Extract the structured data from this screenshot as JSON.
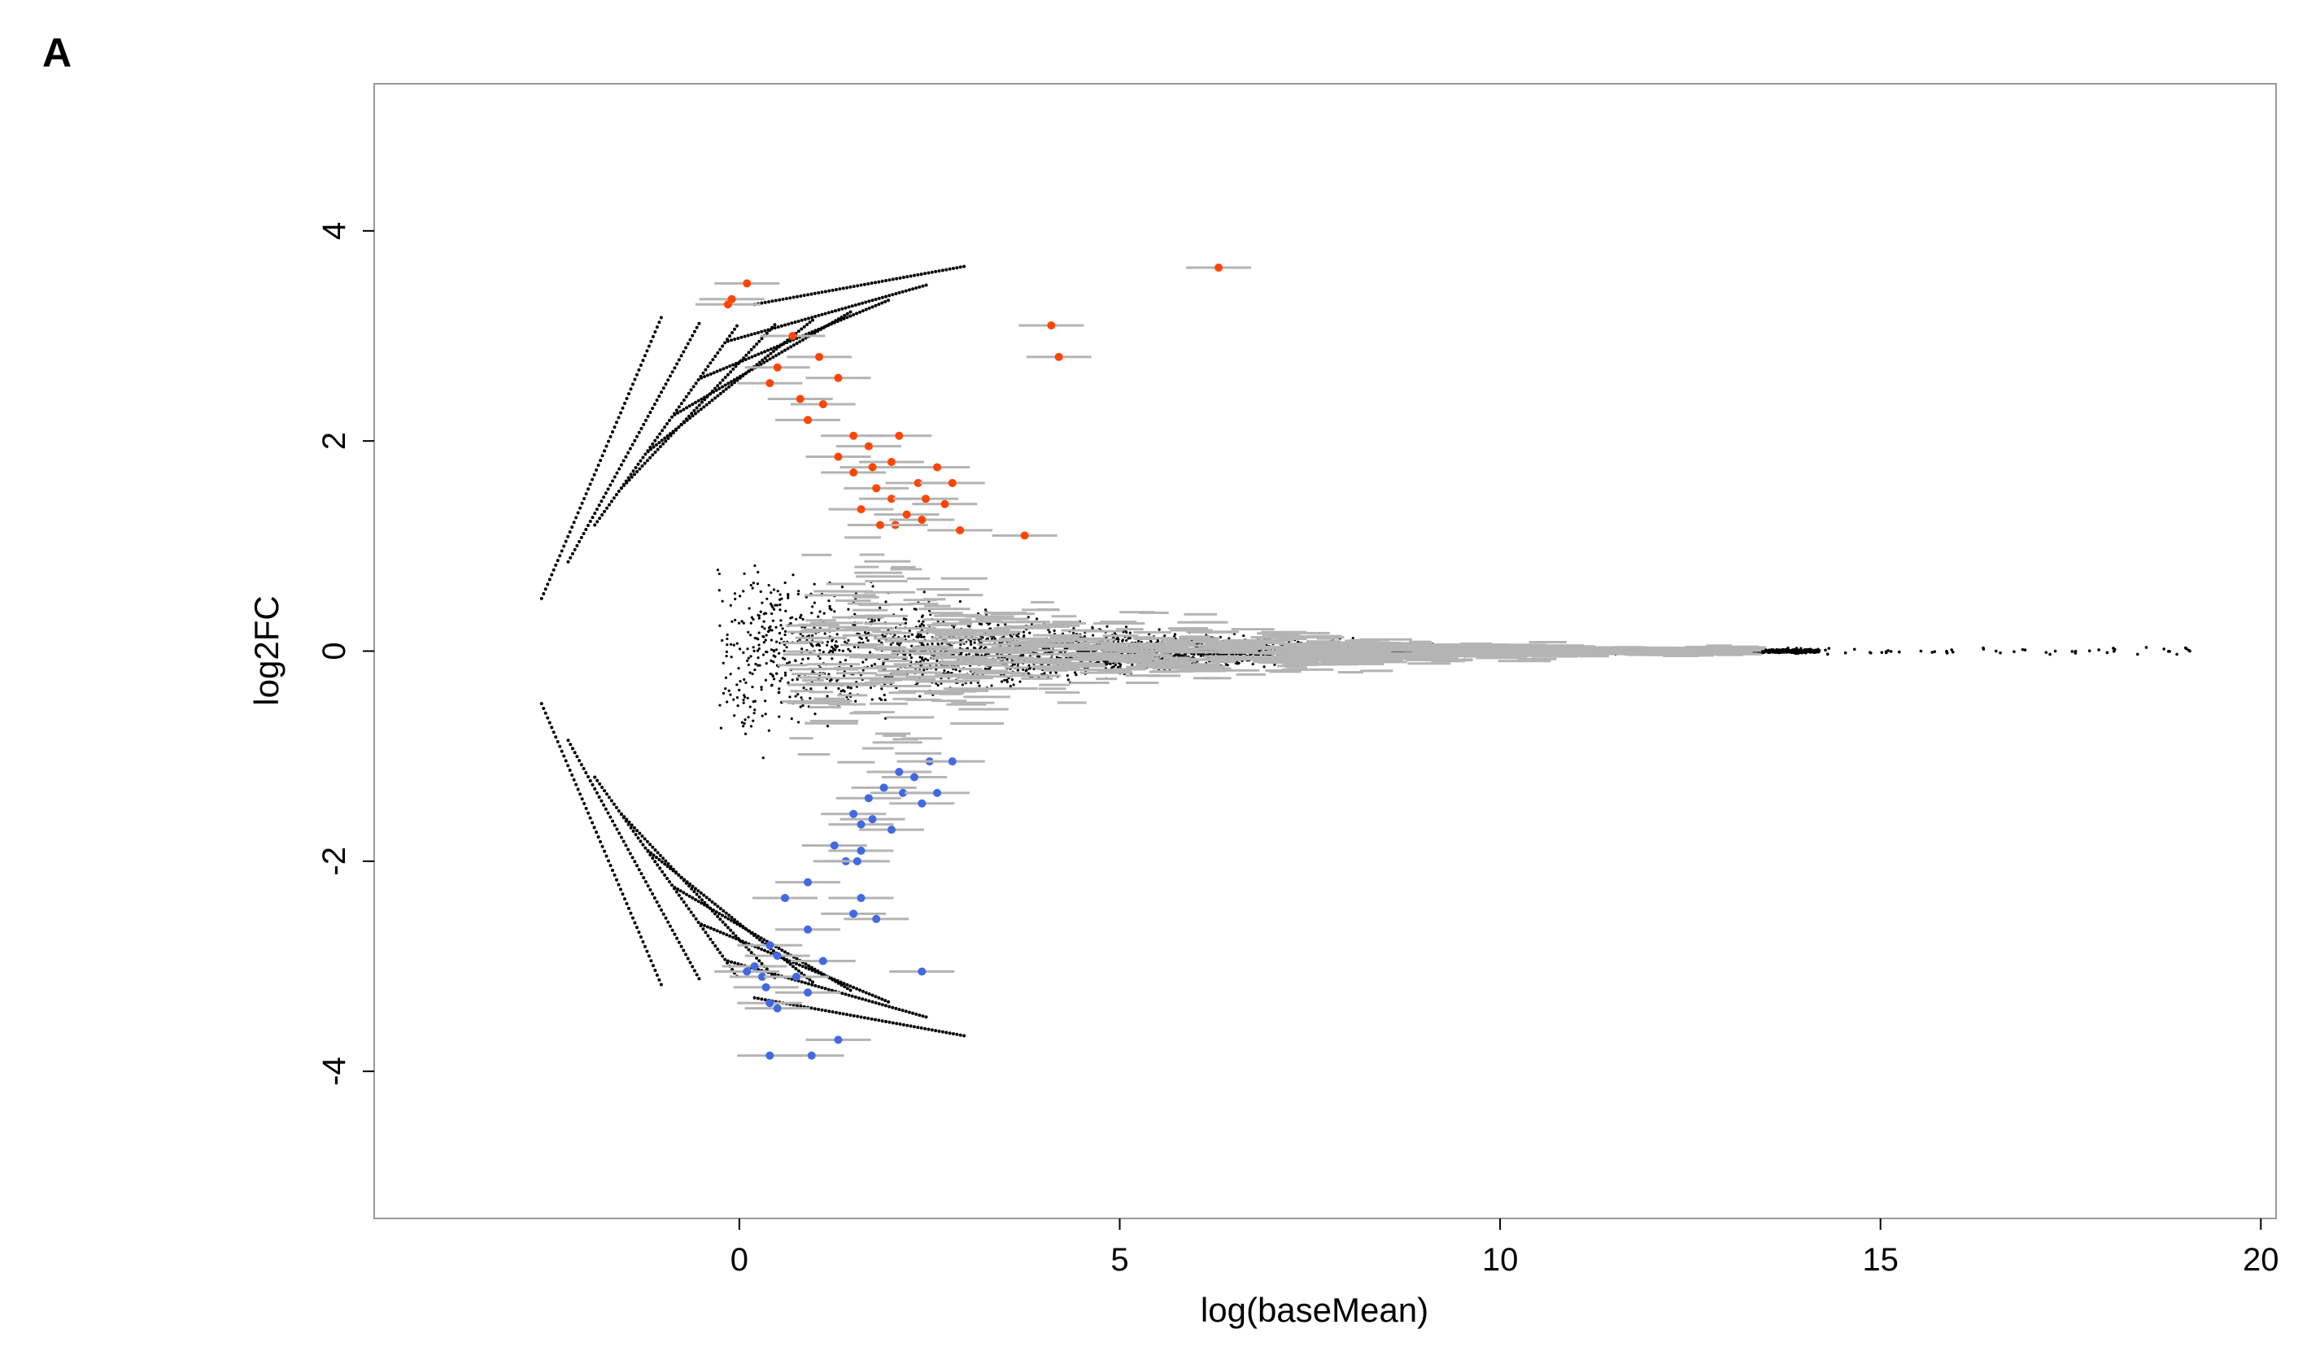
{
  "panel_label": "A",
  "chart_data": {
    "type": "scatter",
    "title": "",
    "xlabel": "log(baseMean)",
    "ylabel": "log2FC",
    "xlim": [
      -4.8,
      20.2
    ],
    "ylim": [
      -5.4,
      5.4
    ],
    "x_ticks": [
      0,
      5,
      10,
      15,
      20
    ],
    "y_ticks": [
      -4,
      -2,
      0,
      2,
      4
    ],
    "x_tick_labels": [
      "0",
      "5",
      "10",
      "15",
      "20"
    ],
    "y_tick_labels": [
      "-4",
      "-2",
      "0",
      "2",
      "4"
    ],
    "grid": false,
    "legend": "none",
    "colors": {
      "points": "#000000",
      "labels": "#b4b4b4",
      "up": "#ff4500",
      "down": "#4169e1",
      "frame": "#999999"
    },
    "series": [
      {
        "color": "#ff4500",
        "points": [
          [
            0.1,
            3.5
          ],
          [
            -0.1,
            3.35
          ],
          [
            -0.15,
            3.3
          ],
          [
            0.7,
            3.0
          ],
          [
            1.05,
            2.8
          ],
          [
            0.5,
            2.7
          ],
          [
            0.4,
            2.55
          ],
          [
            1.3,
            2.6
          ],
          [
            0.8,
            2.4
          ],
          [
            1.1,
            2.35
          ],
          [
            0.9,
            2.2
          ],
          [
            1.5,
            2.05
          ],
          [
            2.1,
            2.05
          ],
          [
            1.7,
            1.95
          ],
          [
            1.3,
            1.85
          ],
          [
            2.0,
            1.8
          ],
          [
            2.6,
            1.75
          ],
          [
            1.75,
            1.75
          ],
          [
            1.5,
            1.7
          ],
          [
            2.35,
            1.6
          ],
          [
            2.8,
            1.6
          ],
          [
            1.8,
            1.55
          ],
          [
            2.0,
            1.45
          ],
          [
            2.45,
            1.45
          ],
          [
            2.7,
            1.4
          ],
          [
            1.6,
            1.35
          ],
          [
            2.2,
            1.3
          ],
          [
            2.4,
            1.25
          ],
          [
            2.05,
            1.2
          ],
          [
            2.9,
            1.15
          ],
          [
            1.85,
            1.2
          ],
          [
            3.75,
            1.1
          ],
          [
            4.1,
            3.1
          ],
          [
            4.2,
            2.8
          ],
          [
            6.3,
            3.65
          ]
        ]
      },
      {
        "color": "#4169e1",
        "points": [
          [
            2.5,
            -1.05
          ],
          [
            2.8,
            -1.05
          ],
          [
            2.1,
            -1.15
          ],
          [
            2.3,
            -1.2
          ],
          [
            1.9,
            -1.3
          ],
          [
            2.15,
            -1.35
          ],
          [
            2.6,
            -1.35
          ],
          [
            1.7,
            -1.4
          ],
          [
            2.4,
            -1.45
          ],
          [
            1.5,
            -1.55
          ],
          [
            1.75,
            -1.6
          ],
          [
            1.6,
            -1.65
          ],
          [
            2.0,
            -1.7
          ],
          [
            1.25,
            -1.85
          ],
          [
            1.6,
            -1.9
          ],
          [
            1.4,
            -2.0
          ],
          [
            1.55,
            -2.0
          ],
          [
            0.9,
            -2.2
          ],
          [
            1.6,
            -2.35
          ],
          [
            0.6,
            -2.35
          ],
          [
            1.5,
            -2.5
          ],
          [
            1.8,
            -2.55
          ],
          [
            0.9,
            -2.65
          ],
          [
            0.4,
            -2.8
          ],
          [
            1.1,
            -2.95
          ],
          [
            0.5,
            -2.9
          ],
          [
            0.2,
            -3.0
          ],
          [
            0.1,
            -3.05
          ],
          [
            0.3,
            -3.1
          ],
          [
            0.35,
            -3.2
          ],
          [
            0.75,
            -3.1
          ],
          [
            0.9,
            -3.25
          ],
          [
            0.4,
            -3.35
          ],
          [
            0.5,
            -3.4
          ],
          [
            2.4,
            -3.05
          ],
          [
            1.3,
            -3.7
          ],
          [
            0.4,
            -3.85
          ],
          [
            0.95,
            -3.85
          ]
        ]
      }
    ]
  }
}
